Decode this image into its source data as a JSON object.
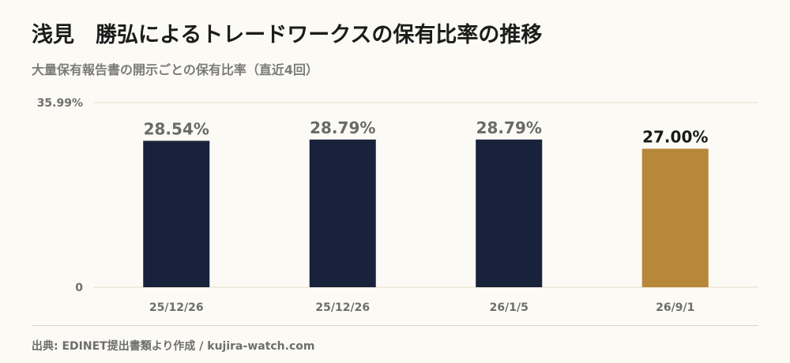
{
  "title": "浅見　勝弘によるトレードワークスの保有比率の推移",
  "subtitle": "大量保有報告書の開示ごとの保有比率（直近4回）",
  "footer": "出典: EDINET提出書類より作成 / kujira-watch.com",
  "colors": {
    "bar": "#19223b",
    "highlight": "#b8873a",
    "grid": "#e4dccb",
    "axis_text": "#6e6e6e",
    "label_text": "#6a6a6a",
    "highlight_label_text": "#1a1a1a"
  },
  "chart_data": {
    "type": "bar",
    "categories": [
      "25/12/26",
      "25/12/26",
      "26/1/5",
      "26/9/1"
    ],
    "values": [
      28.54,
      28.79,
      28.79,
      27.0
    ],
    "data_labels": [
      "28.54%",
      "28.79%",
      "28.79%",
      "27.00%"
    ],
    "highlight_index": 3,
    "ylim": [
      0,
      35.99
    ],
    "yticks": [
      "0",
      "35.99%"
    ],
    "grid": true,
    "xlabel": "",
    "ylabel": ""
  }
}
